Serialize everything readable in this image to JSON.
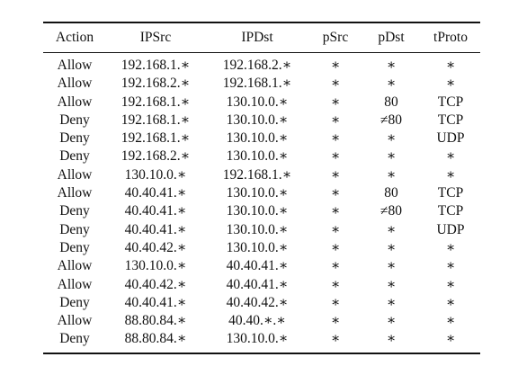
{
  "table": {
    "headers": [
      "Action",
      "IPSrc",
      "IPDst",
      "pSrc",
      "pDst",
      "tProto"
    ],
    "rows": [
      [
        "Allow",
        "192.168.1.∗",
        "192.168.2.∗",
        "∗",
        "∗",
        "∗"
      ],
      [
        "Allow",
        "192.168.2.∗",
        "192.168.1.∗",
        "∗",
        "∗",
        "∗"
      ],
      [
        "Allow",
        "192.168.1.∗",
        "130.10.0.∗",
        "∗",
        "80",
        "TCP"
      ],
      [
        "Deny",
        "192.168.1.∗",
        "130.10.0.∗",
        "∗",
        "≠80",
        "TCP"
      ],
      [
        "Deny",
        "192.168.1.∗",
        "130.10.0.∗",
        "∗",
        "∗",
        "UDP"
      ],
      [
        "Deny",
        "192.168.2.∗",
        "130.10.0.∗",
        "∗",
        "∗",
        "∗"
      ],
      [
        "Allow",
        "130.10.0.∗",
        "192.168.1.∗",
        "∗",
        "∗",
        "∗"
      ],
      [
        "Allow",
        "40.40.41.∗",
        "130.10.0.∗",
        "∗",
        "80",
        "TCP"
      ],
      [
        "Deny",
        "40.40.41.∗",
        "130.10.0.∗",
        "∗",
        "≠80",
        "TCP"
      ],
      [
        "Deny",
        "40.40.41.∗",
        "130.10.0.∗",
        "∗",
        "∗",
        "UDP"
      ],
      [
        "Deny",
        "40.40.42.∗",
        "130.10.0.∗",
        "∗",
        "∗",
        "∗"
      ],
      [
        "Allow",
        "130.10.0.∗",
        "40.40.41.∗",
        "∗",
        "∗",
        "∗"
      ],
      [
        "Allow",
        "40.40.42.∗",
        "40.40.41.∗",
        "∗",
        "∗",
        "∗"
      ],
      [
        "Deny",
        "40.40.41.∗",
        "40.40.42.∗",
        "∗",
        "∗",
        "∗"
      ],
      [
        "Allow",
        "88.80.84.∗",
        "40.40.∗.∗",
        "∗",
        "∗",
        "∗"
      ],
      [
        "Deny",
        "88.80.84.∗",
        "130.10.0.∗",
        "∗",
        "∗",
        "∗"
      ]
    ]
  }
}
